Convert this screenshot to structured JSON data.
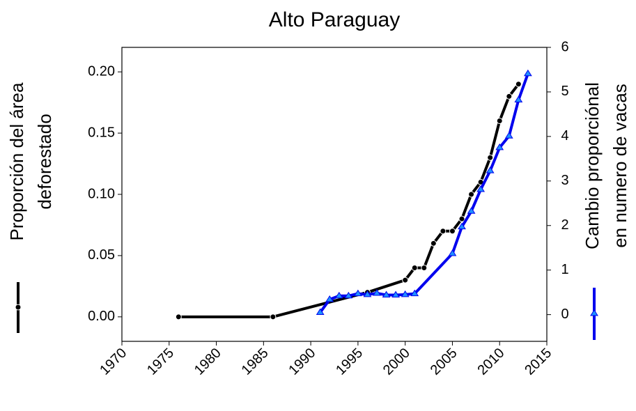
{
  "chart_data": {
    "type": "line",
    "title": "Alto Paraguay",
    "ylabel": [
      "Proporción del área",
      "deforestado"
    ],
    "y2label": [
      "Cambio proporciónal",
      "en numero de vacas"
    ],
    "xlim": [
      1970,
      2015
    ],
    "xticks": [
      1970,
      1975,
      1980,
      1985,
      1990,
      1995,
      2000,
      2005,
      2010,
      2015
    ],
    "ylim": [
      -0.02,
      0.22
    ],
    "yticks": [
      {
        "value": 0,
        "label": "0.00"
      },
      {
        "value": 0.05,
        "label": "0.05"
      },
      {
        "value": 0.1,
        "label": "0.10"
      },
      {
        "value": 0.15,
        "label": "0.15"
      },
      {
        "value": 0.2,
        "label": "0.20"
      }
    ],
    "y2lim": [
      -0.6,
      6
    ],
    "y2ticks": [
      0,
      1,
      2,
      3,
      4,
      5,
      6
    ],
    "series": [
      {
        "color": "#000000",
        "marker_color": "#000000",
        "marker": "circle",
        "axis": "y",
        "x": [
          1976,
          1986,
          1996,
          2000,
          2001,
          2002,
          2003,
          2004,
          2005,
          2006,
          2007,
          2008,
          2009,
          2010,
          2011,
          2012
        ],
        "values": [
          0,
          0,
          0.02,
          0.03,
          0.04,
          0.04,
          0.06,
          0.07,
          0.07,
          0.08,
          0.1,
          0.11,
          0.13,
          0.16,
          0.18,
          0.19
        ]
      },
      {
        "color": "#0000ee",
        "marker_color": "#1e90ff",
        "marker": "triangle",
        "axis": "y2",
        "x": [
          1991,
          1992,
          1993,
          1994,
          1995,
          1996,
          1997,
          1998,
          1999,
          2000,
          2001,
          2005,
          2006,
          2007,
          2008,
          2009,
          2010,
          2011,
          2012,
          2013
        ],
        "values": [
          0.05,
          0.34,
          0.42,
          0.42,
          0.47,
          0.45,
          0.48,
          0.44,
          0.44,
          0.45,
          0.47,
          1.37,
          1.97,
          2.32,
          2.81,
          3.23,
          3.75,
          4.01,
          4.82,
          5.41
        ]
      }
    ]
  }
}
